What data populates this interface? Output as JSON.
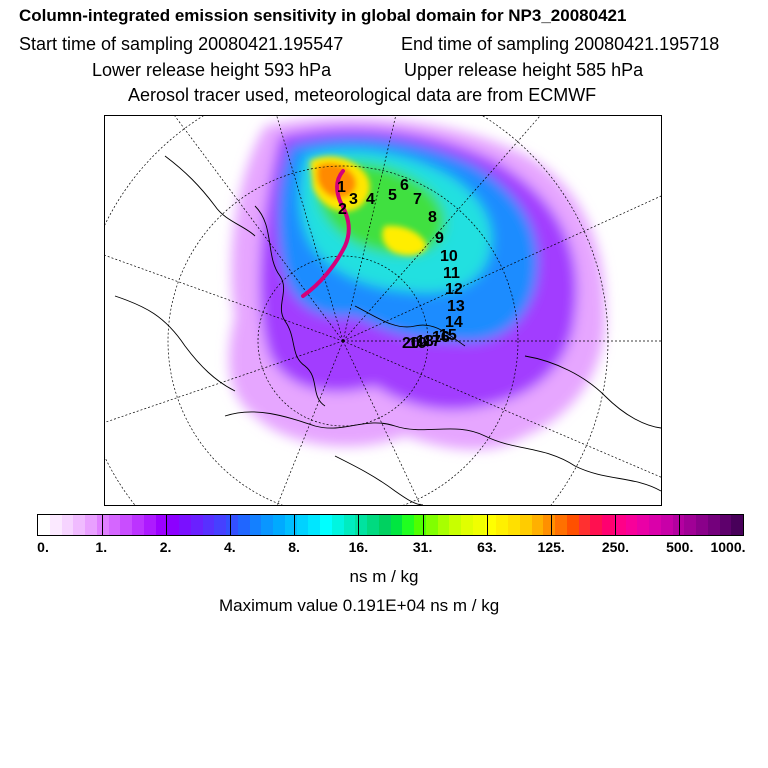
{
  "header": {
    "title": "Column-integrated emission sensitivity in global domain for NP3_20080421",
    "start_time": "Start time of sampling 20080421.195547",
    "end_time": "End time of sampling 20080421.195718",
    "lower_release": "Lower release height  593 hPa",
    "upper_release": "Upper release height  585 hPa",
    "tracer_info": "Aerosol tracer used, meteorological data are from ECMWF"
  },
  "map": {
    "trajectory_labels": [
      "1",
      "2",
      "3",
      "4",
      "5",
      "6",
      "7",
      "8",
      "9",
      "10",
      "11",
      "12",
      "13",
      "14",
      "15",
      "16",
      "17",
      "18",
      "19",
      "20"
    ],
    "trajectory_color": "#d4007a"
  },
  "colorbar": {
    "tick_labels": [
      "0.",
      "1.",
      "2.",
      "4.",
      "8.",
      "16.",
      "31.",
      "63.",
      "125.",
      "250.",
      "500.",
      "1000."
    ],
    "colors": [
      "#ffffff",
      "#fbe9ff",
      "#f6d4ff",
      "#f0bbff",
      "#e9a0ff",
      "#e07fff",
      "#d566ff",
      "#c94dff",
      "#bc33ff",
      "#ad1aff",
      "#9c00ff",
      "#8c00ff",
      "#7a10ff",
      "#6a20ff",
      "#5830ff",
      "#4640ff",
      "#3350ff",
      "#2066ff",
      "#1480ff",
      "#0a96ff",
      "#00aaff",
      "#00bfff",
      "#00d2ff",
      "#00e6ff",
      "#00ffff",
      "#00f5e0",
      "#00ecc0",
      "#00e3a0",
      "#00da80",
      "#00d160",
      "#00e640",
      "#20ff20",
      "#50ff00",
      "#80ff00",
      "#a8ff00",
      "#c8ff00",
      "#e0ff00",
      "#f0ff00",
      "#ffff00",
      "#fff000",
      "#ffe000",
      "#ffcc00",
      "#ffb000",
      "#ff9000",
      "#ff7000",
      "#ff5000",
      "#ff3030",
      "#ff1050",
      "#ff0070",
      "#ff0088",
      "#f8009a",
      "#ea00a6",
      "#da00aa",
      "#c800a8",
      "#b400a0",
      "#a00096",
      "#8a008a",
      "#74007c",
      "#5e006c",
      "#48005a"
    ]
  },
  "units": "ns m / kg",
  "maximum": "Maximum value  0.191E+04 ns m / kg"
}
